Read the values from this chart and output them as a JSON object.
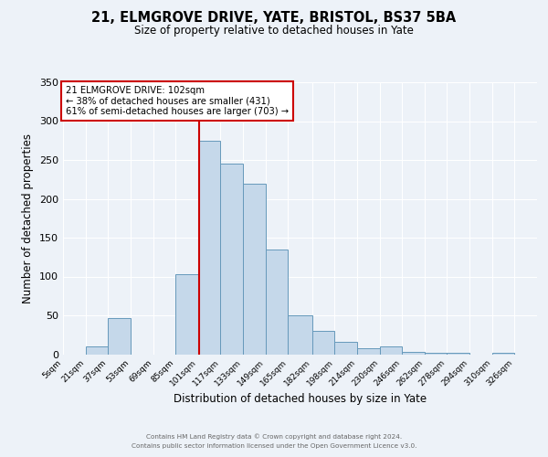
{
  "title": "21, ELMGROVE DRIVE, YATE, BRISTOL, BS37 5BA",
  "subtitle": "Size of property relative to detached houses in Yate",
  "xlabel": "Distribution of detached houses by size in Yate",
  "ylabel": "Number of detached properties",
  "bin_edges": [
    5,
    21,
    37,
    53,
    69,
    85,
    101,
    117,
    133,
    149,
    165,
    182,
    198,
    214,
    230,
    246,
    262,
    278,
    294,
    310,
    326,
    342
  ],
  "bar_heights": [
    0,
    10,
    47,
    0,
    0,
    103,
    275,
    245,
    220,
    135,
    50,
    30,
    16,
    8,
    10,
    3,
    2,
    2,
    0,
    2,
    0
  ],
  "bar_color": "#c5d8ea",
  "bar_edge_color": "#6699bb",
  "property_value": 102,
  "vline_color": "#cc0000",
  "annotation_line1": "21 ELMGROVE DRIVE: 102sqm",
  "annotation_line2": "← 38% of detached houses are smaller (431)",
  "annotation_line3": "61% of semi-detached houses are larger (703) →",
  "annotation_box_facecolor": "white",
  "annotation_box_edgecolor": "#cc0000",
  "ylim": [
    0,
    350
  ],
  "yticks": [
    0,
    50,
    100,
    150,
    200,
    250,
    300,
    350
  ],
  "xlim_left": 5,
  "xlim_right": 342,
  "background_color": "#edf2f8",
  "grid_color": "white",
  "footer_line1": "Contains HM Land Registry data © Crown copyright and database right 2024.",
  "footer_line2": "Contains public sector information licensed under the Open Government Licence v3.0.",
  "tick_labels": [
    "5sqm",
    "21sqm",
    "37sqm",
    "53sqm",
    "69sqm",
    "85sqm",
    "101sqm",
    "117sqm",
    "133sqm",
    "149sqm",
    "165sqm",
    "182sqm",
    "198sqm",
    "214sqm",
    "230sqm",
    "246sqm",
    "262sqm",
    "278sqm",
    "294sqm",
    "310sqm",
    "326sqm"
  ]
}
